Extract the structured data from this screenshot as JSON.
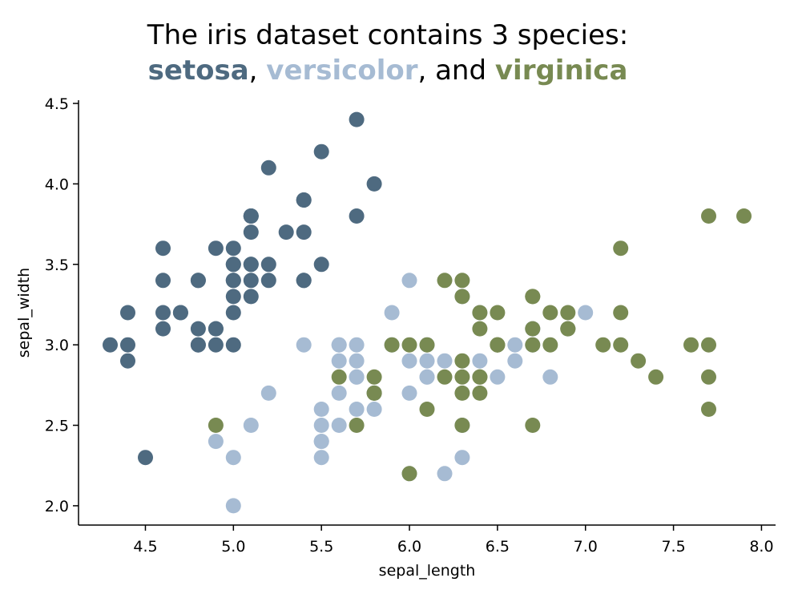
{
  "chart_data": {
    "type": "scatter",
    "title": {
      "line1": "The iris dataset contains 3 species:",
      "sep1": ", ",
      "sep2": ", and "
    },
    "xlabel": "sepal_length",
    "ylabel": "sepal_width",
    "xlim": [
      4.12,
      8.08
    ],
    "ylim": [
      1.88,
      4.52
    ],
    "xticks": [
      "4.5",
      "5.0",
      "5.5",
      "6.0",
      "6.5",
      "7.0",
      "7.5",
      "8.0"
    ],
    "yticks": [
      "2.0",
      "2.5",
      "3.0",
      "3.5",
      "4.0",
      "4.5"
    ],
    "grid": false,
    "legend": "none",
    "series": [
      {
        "name": "setosa",
        "color": "#4e6a80",
        "points": [
          [
            5.1,
            3.5
          ],
          [
            4.9,
            3.0
          ],
          [
            4.7,
            3.2
          ],
          [
            4.6,
            3.1
          ],
          [
            5.0,
            3.6
          ],
          [
            5.4,
            3.9
          ],
          [
            4.6,
            3.4
          ],
          [
            5.0,
            3.4
          ],
          [
            4.4,
            2.9
          ],
          [
            4.9,
            3.1
          ],
          [
            5.4,
            3.7
          ],
          [
            4.8,
            3.4
          ],
          [
            4.8,
            3.0
          ],
          [
            4.3,
            3.0
          ],
          [
            5.8,
            4.0
          ],
          [
            5.7,
            4.4
          ],
          [
            5.4,
            3.9
          ],
          [
            5.1,
            3.5
          ],
          [
            5.7,
            3.8
          ],
          [
            5.1,
            3.8
          ],
          [
            5.4,
            3.4
          ],
          [
            5.1,
            3.7
          ],
          [
            4.6,
            3.6
          ],
          [
            5.1,
            3.3
          ],
          [
            4.8,
            3.4
          ],
          [
            5.0,
            3.0
          ],
          [
            5.0,
            3.4
          ],
          [
            5.2,
            3.5
          ],
          [
            5.2,
            3.4
          ],
          [
            4.7,
            3.2
          ],
          [
            4.8,
            3.1
          ],
          [
            5.4,
            3.4
          ],
          [
            5.2,
            4.1
          ],
          [
            5.5,
            4.2
          ],
          [
            4.9,
            3.1
          ],
          [
            5.0,
            3.2
          ],
          [
            5.5,
            3.5
          ],
          [
            4.9,
            3.6
          ],
          [
            4.4,
            3.0
          ],
          [
            5.1,
            3.4
          ],
          [
            5.0,
            3.5
          ],
          [
            4.5,
            2.3
          ],
          [
            4.4,
            3.2
          ],
          [
            5.0,
            3.5
          ],
          [
            5.1,
            3.8
          ],
          [
            4.8,
            3.0
          ],
          [
            5.1,
            3.8
          ],
          [
            4.6,
            3.2
          ],
          [
            5.3,
            3.7
          ],
          [
            5.0,
            3.3
          ]
        ]
      },
      {
        "name": "versicolor",
        "color": "#a6bbd3",
        "points": [
          [
            7.0,
            3.2
          ],
          [
            6.4,
            3.2
          ],
          [
            6.9,
            3.1
          ],
          [
            5.5,
            2.3
          ],
          [
            6.5,
            2.8
          ],
          [
            5.7,
            2.8
          ],
          [
            6.3,
            3.3
          ],
          [
            4.9,
            2.4
          ],
          [
            6.6,
            2.9
          ],
          [
            5.2,
            2.7
          ],
          [
            5.0,
            2.0
          ],
          [
            5.9,
            3.0
          ],
          [
            6.0,
            2.2
          ],
          [
            6.1,
            2.9
          ],
          [
            5.6,
            2.9
          ],
          [
            6.7,
            3.1
          ],
          [
            5.6,
            3.0
          ],
          [
            5.8,
            2.7
          ],
          [
            6.2,
            2.2
          ],
          [
            5.6,
            2.5
          ],
          [
            5.9,
            3.2
          ],
          [
            6.1,
            2.8
          ],
          [
            6.3,
            2.5
          ],
          [
            6.1,
            2.8
          ],
          [
            6.4,
            2.9
          ],
          [
            6.6,
            3.0
          ],
          [
            6.8,
            2.8
          ],
          [
            6.7,
            3.0
          ],
          [
            6.0,
            2.9
          ],
          [
            5.7,
            2.6
          ],
          [
            5.5,
            2.4
          ],
          [
            5.5,
            2.4
          ],
          [
            5.8,
            2.7
          ],
          [
            6.0,
            2.7
          ],
          [
            5.4,
            3.0
          ],
          [
            6.0,
            3.4
          ],
          [
            6.7,
            3.1
          ],
          [
            6.3,
            2.3
          ],
          [
            5.6,
            3.0
          ],
          [
            5.5,
            2.5
          ],
          [
            5.5,
            2.6
          ],
          [
            6.1,
            3.0
          ],
          [
            5.8,
            2.6
          ],
          [
            5.0,
            2.3
          ],
          [
            5.6,
            2.7
          ],
          [
            5.7,
            3.0
          ],
          [
            5.7,
            2.9
          ],
          [
            6.2,
            2.9
          ],
          [
            5.1,
            2.5
          ],
          [
            5.7,
            2.8
          ]
        ]
      },
      {
        "name": "virginica",
        "color": "#788a52",
        "points": [
          [
            6.3,
            3.3
          ],
          [
            5.8,
            2.7
          ],
          [
            7.1,
            3.0
          ],
          [
            6.3,
            2.9
          ],
          [
            6.5,
            3.0
          ],
          [
            7.6,
            3.0
          ],
          [
            4.9,
            2.5
          ],
          [
            7.3,
            2.9
          ],
          [
            6.7,
            2.5
          ],
          [
            7.2,
            3.6
          ],
          [
            6.5,
            3.2
          ],
          [
            6.4,
            2.7
          ],
          [
            6.8,
            3.0
          ],
          [
            5.7,
            2.5
          ],
          [
            5.8,
            2.8
          ],
          [
            6.4,
            3.2
          ],
          [
            6.5,
            3.0
          ],
          [
            7.7,
            3.8
          ],
          [
            7.7,
            2.6
          ],
          [
            6.0,
            2.2
          ],
          [
            6.9,
            3.2
          ],
          [
            5.6,
            2.8
          ],
          [
            7.7,
            2.8
          ],
          [
            6.3,
            2.7
          ],
          [
            6.7,
            3.3
          ],
          [
            7.2,
            3.2
          ],
          [
            6.2,
            2.8
          ],
          [
            6.1,
            3.0
          ],
          [
            6.4,
            2.8
          ],
          [
            7.2,
            3.0
          ],
          [
            7.4,
            2.8
          ],
          [
            7.9,
            3.8
          ],
          [
            6.4,
            2.8
          ],
          [
            6.3,
            2.8
          ],
          [
            6.1,
            2.6
          ],
          [
            7.7,
            3.0
          ],
          [
            6.3,
            3.4
          ],
          [
            6.4,
            3.1
          ],
          [
            6.0,
            3.0
          ],
          [
            6.9,
            3.1
          ],
          [
            6.7,
            3.1
          ],
          [
            6.9,
            3.1
          ],
          [
            5.8,
            2.7
          ],
          [
            6.8,
            3.2
          ],
          [
            6.7,
            3.3
          ],
          [
            6.7,
            3.0
          ],
          [
            6.3,
            2.5
          ],
          [
            6.5,
            3.0
          ],
          [
            6.2,
            3.4
          ],
          [
            5.9,
            3.0
          ]
        ]
      }
    ]
  }
}
